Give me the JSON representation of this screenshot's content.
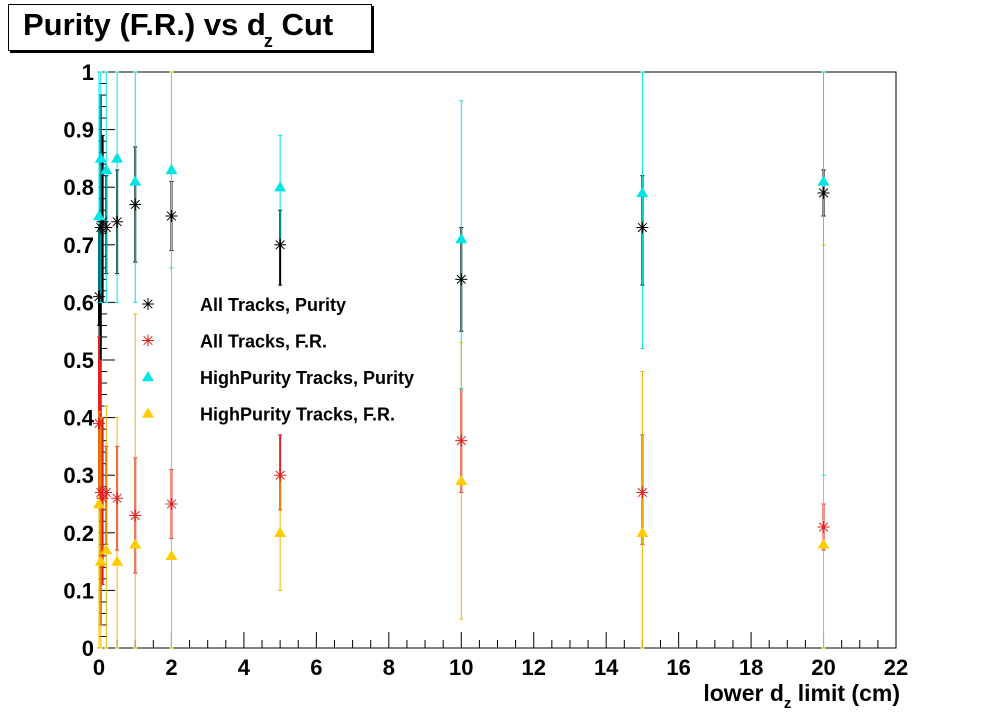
{
  "title": {
    "main": "Purity (F.R.) vs d",
    "sub": "z",
    "tail": "Cut"
  },
  "xlabel": {
    "pre": "lower d",
    "sub": "z",
    "post": " limit (cm)"
  },
  "chart_data": {
    "type": "scatter",
    "title": "Purity (F.R.) vs dz Cut",
    "xlabel": "lower dz limit (cm)",
    "ylabel": "",
    "xlim": [
      0,
      22
    ],
    "ylim": [
      0,
      1
    ],
    "xticks": [
      0,
      2,
      4,
      6,
      8,
      10,
      12,
      14,
      16,
      18,
      20,
      22
    ],
    "yticks": [
      0,
      0.1,
      0.2,
      0.3,
      0.4,
      0.5,
      0.6,
      0.7,
      0.8,
      0.9,
      1
    ],
    "ytick_labels": [
      "0",
      "0.1",
      "0.2",
      "0.3",
      "0.4",
      "0.5",
      "0.6",
      "0.7",
      "0.8",
      "0.9",
      "1"
    ],
    "grid": false,
    "legend_position": "center-left",
    "series": [
      {
        "name": "All Tracks, Purity",
        "marker": "star",
        "color": "#000000",
        "err_color": "#000000",
        "points": [
          {
            "x": 0,
            "y": 0.61,
            "lo": 0.56,
            "hi": 0.73
          },
          {
            "x": 0.05,
            "y": 0.73,
            "lo": 0.5,
            "hi": 0.96
          },
          {
            "x": 0.1,
            "y": 0.74,
            "lo": 0.6,
            "hi": 0.89
          },
          {
            "x": 0.2,
            "y": 0.73,
            "lo": 0.65,
            "hi": 0.82
          },
          {
            "x": 0.5,
            "y": 0.74,
            "lo": 0.65,
            "hi": 0.83
          },
          {
            "x": 1,
            "y": 0.77,
            "lo": 0.67,
            "hi": 0.87
          },
          {
            "x": 2,
            "y": 0.75,
            "lo": 0.69,
            "hi": 0.81
          },
          {
            "x": 5,
            "y": 0.7,
            "lo": 0.63,
            "hi": 0.76
          },
          {
            "x": 10,
            "y": 0.64,
            "lo": 0.55,
            "hi": 0.73
          },
          {
            "x": 15,
            "y": 0.73,
            "lo": 0.63,
            "hi": 0.82
          },
          {
            "x": 20,
            "y": 0.79,
            "lo": 0.75,
            "hi": 0.83
          }
        ]
      },
      {
        "name": "All Tracks, F.R.",
        "marker": "star",
        "color": "#e02020",
        "err_color": "#e02020",
        "points": [
          {
            "x": 0,
            "y": 0.39,
            "lo": 0.27,
            "hi": 0.54
          },
          {
            "x": 0.05,
            "y": 0.27,
            "lo": 0.04,
            "hi": 0.5
          },
          {
            "x": 0.1,
            "y": 0.26,
            "lo": 0.11,
            "hi": 0.4
          },
          {
            "x": 0.2,
            "y": 0.27,
            "lo": 0.18,
            "hi": 0.35
          },
          {
            "x": 0.5,
            "y": 0.26,
            "lo": 0.17,
            "hi": 0.35
          },
          {
            "x": 1,
            "y": 0.23,
            "lo": 0.13,
            "hi": 0.33
          },
          {
            "x": 2,
            "y": 0.25,
            "lo": 0.19,
            "hi": 0.31
          },
          {
            "x": 5,
            "y": 0.3,
            "lo": 0.24,
            "hi": 0.37
          },
          {
            "x": 10,
            "y": 0.36,
            "lo": 0.27,
            "hi": 0.45
          },
          {
            "x": 15,
            "y": 0.27,
            "lo": 0.18,
            "hi": 0.37
          },
          {
            "x": 20,
            "y": 0.21,
            "lo": 0.17,
            "hi": 0.25
          }
        ]
      },
      {
        "name": "HighPurity Tracks, Purity",
        "marker": "triangle",
        "color": "#00e5e5",
        "err_color": "#00e5e5",
        "points": [
          {
            "x": 0,
            "y": 0.75,
            "lo": 0.6,
            "hi": 1.0
          },
          {
            "x": 0.05,
            "y": 0.85,
            "lo": 0.6,
            "hi": 1.0
          },
          {
            "x": 0.2,
            "y": 0.83,
            "lo": 0.6,
            "hi": 1.0
          },
          {
            "x": 0.5,
            "y": 0.85,
            "lo": 0.6,
            "hi": 1.0
          },
          {
            "x": 1,
            "y": 0.81,
            "lo": 0.6,
            "hi": 1.0
          },
          {
            "x": 2,
            "y": 0.83,
            "lo": 0.66,
            "hi": 1.0
          },
          {
            "x": 5,
            "y": 0.8,
            "lo": 0.7,
            "hi": 0.89
          },
          {
            "x": 10,
            "y": 0.71,
            "lo": 0.45,
            "hi": 0.95
          },
          {
            "x": 15,
            "y": 0.79,
            "lo": 0.52,
            "hi": 1.0
          },
          {
            "x": 20,
            "y": 0.81,
            "lo": 0.3,
            "hi": 1.0
          }
        ]
      },
      {
        "name": "HighPurity Tracks, F.R.",
        "marker": "triangle",
        "color": "#ffcc00",
        "err_color": "#e8b800",
        "points": [
          {
            "x": 0,
            "y": 0.25,
            "lo": 0.0,
            "hi": 0.41
          },
          {
            "x": 0.05,
            "y": 0.15,
            "lo": 0.0,
            "hi": 0.4
          },
          {
            "x": 0.2,
            "y": 0.17,
            "lo": 0.0,
            "hi": 0.42
          },
          {
            "x": 0.5,
            "y": 0.15,
            "lo": 0.0,
            "hi": 0.4
          },
          {
            "x": 1,
            "y": 0.18,
            "lo": 0.0,
            "hi": 0.58
          },
          {
            "x": 2,
            "y": 0.16,
            "lo": 0.0,
            "hi": 1.0
          },
          {
            "x": 5,
            "y": 0.2,
            "lo": 0.1,
            "hi": 0.3
          },
          {
            "x": 10,
            "y": 0.29,
            "lo": 0.05,
            "hi": 0.53
          },
          {
            "x": 15,
            "y": 0.2,
            "lo": 0.0,
            "hi": 0.48
          },
          {
            "x": 20,
            "y": 0.18,
            "lo": 0.0,
            "hi": 0.7
          }
        ]
      }
    ]
  }
}
